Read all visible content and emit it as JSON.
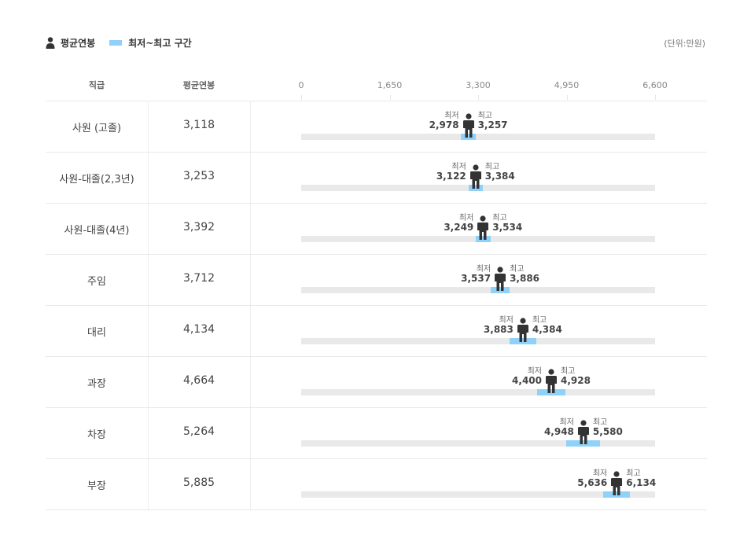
{
  "legend": {
    "avg_label": "평균연봉",
    "range_label": "최저~최고 구간"
  },
  "unit_label": "(단위:만원)",
  "headers": {
    "grade": "직급",
    "avg": "평균연봉"
  },
  "colors": {
    "range": "#8fd1f8",
    "track": "#e9e9e9",
    "marker": "#333333"
  },
  "chart_data": {
    "type": "range-bar",
    "xlim": [
      0,
      6600
    ],
    "ticks": [
      "0",
      "1,650",
      "3,300",
      "4,950",
      "6,600"
    ],
    "tick_values": [
      0,
      1650,
      3300,
      4950,
      6600
    ],
    "min_label": "최저",
    "max_label": "최고",
    "rows": [
      {
        "grade": "사원 (고졸)",
        "avg": 3118,
        "avg_text": "3,118",
        "min": 2978,
        "min_text": "2,978",
        "max": 3257,
        "max_text": "3,257"
      },
      {
        "grade": "사원-대졸(2,3년)",
        "avg": 3253,
        "avg_text": "3,253",
        "min": 3122,
        "min_text": "3,122",
        "max": 3384,
        "max_text": "3,384"
      },
      {
        "grade": "사원-대졸(4년)",
        "avg": 3392,
        "avg_text": "3,392",
        "min": 3249,
        "min_text": "3,249",
        "max": 3534,
        "max_text": "3,534"
      },
      {
        "grade": "주임",
        "avg": 3712,
        "avg_text": "3,712",
        "min": 3537,
        "min_text": "3,537",
        "max": 3886,
        "max_text": "3,886"
      },
      {
        "grade": "대리",
        "avg": 4134,
        "avg_text": "4,134",
        "min": 3883,
        "min_text": "3,883",
        "max": 4384,
        "max_text": "4,384"
      },
      {
        "grade": "과장",
        "avg": 4664,
        "avg_text": "4,664",
        "min": 4400,
        "min_text": "4,400",
        "max": 4928,
        "max_text": "4,928"
      },
      {
        "grade": "차장",
        "avg": 5264,
        "avg_text": "5,264",
        "min": 4948,
        "min_text": "4,948",
        "max": 5580,
        "max_text": "5,580"
      },
      {
        "grade": "부장",
        "avg": 5885,
        "avg_text": "5,885",
        "min": 5636,
        "min_text": "5,636",
        "max": 6134,
        "max_text": "6,134"
      }
    ]
  }
}
